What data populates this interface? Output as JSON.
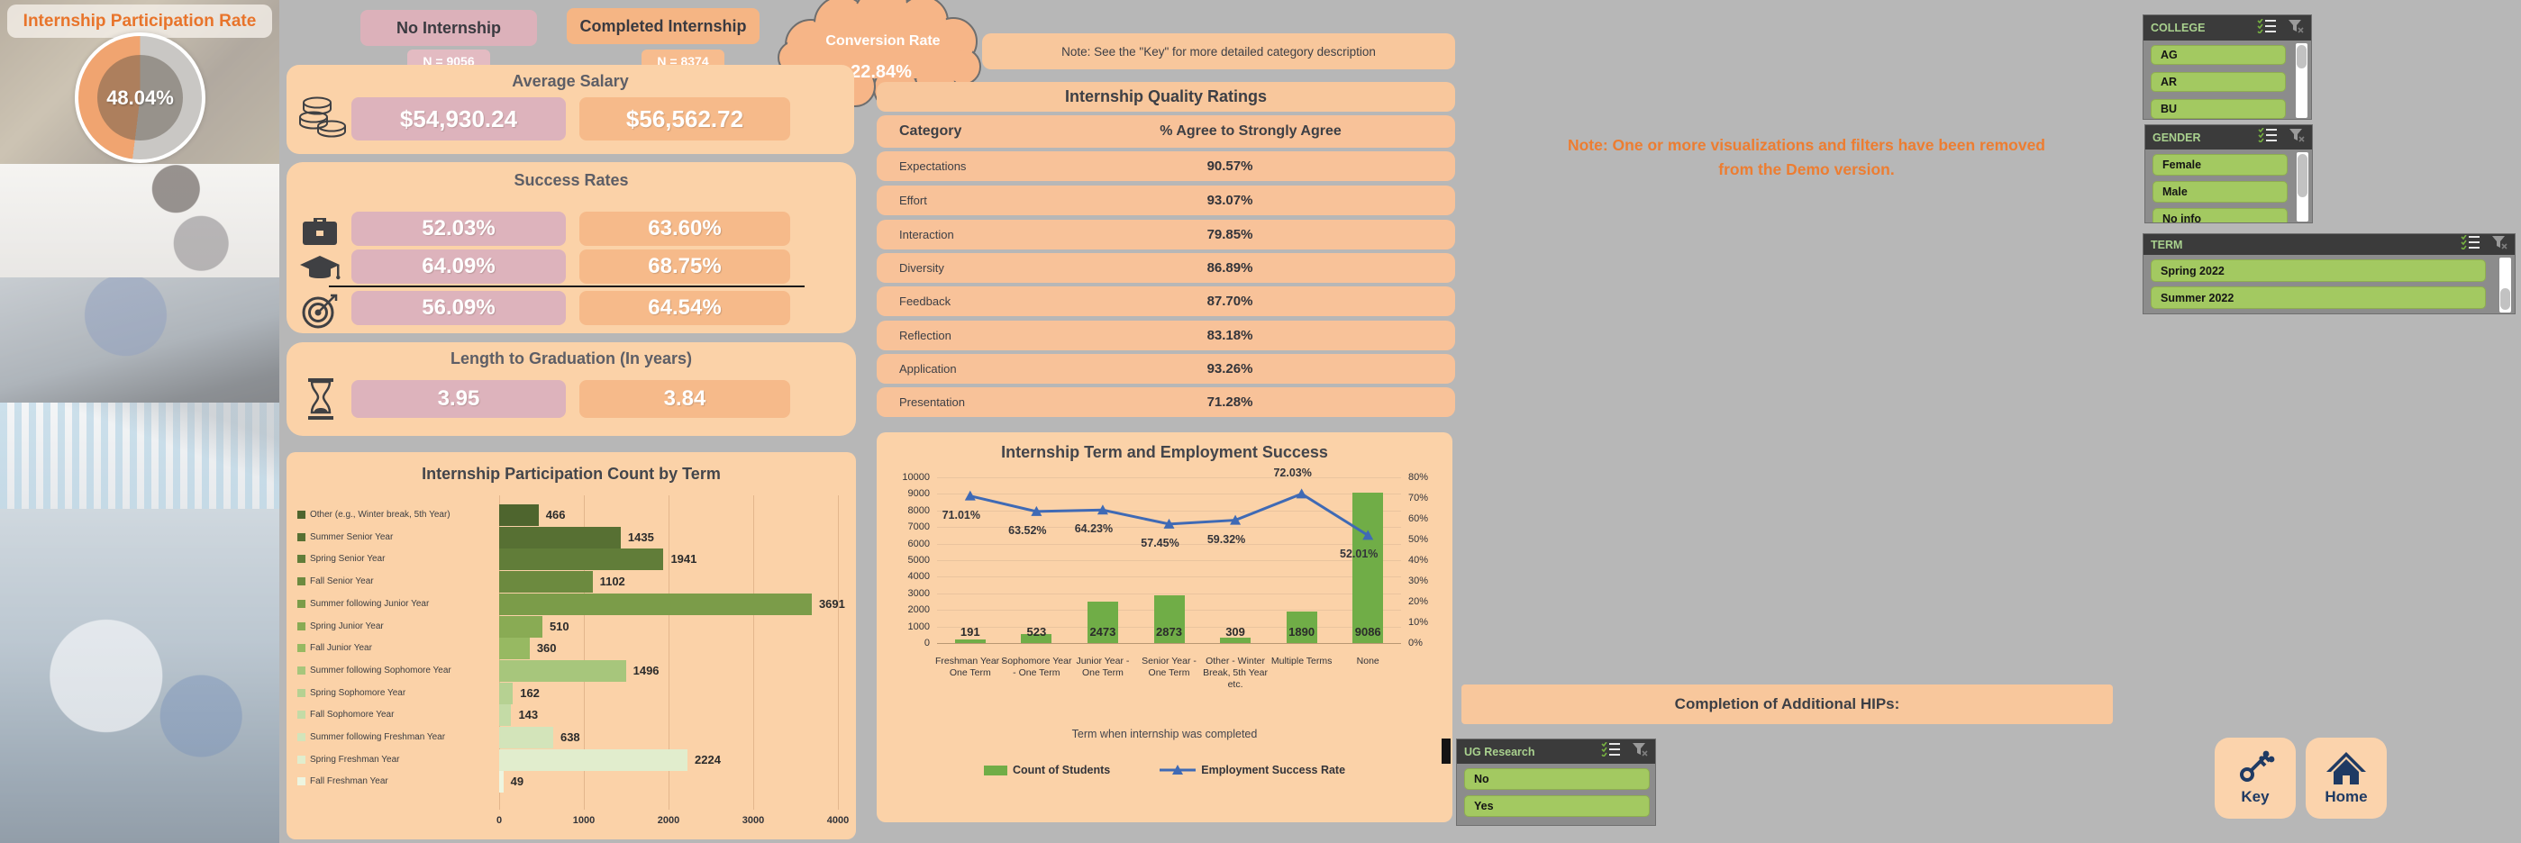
{
  "sidebar": {
    "title": "Internship Participation Rate",
    "donut_value": "48.04%",
    "donut_pct": 48.04,
    "donut_color": "#f0a470"
  },
  "header": {
    "no_label": "No Internship",
    "no_n": "N = 9056",
    "yes_label": "Completed Internship",
    "yes_n": "N = 8374",
    "conversion_label": "Conversion Rate",
    "conversion_value": "22.84%"
  },
  "salary": {
    "title": "Average Salary",
    "no": "$54,930.24",
    "yes": "$56,562.72"
  },
  "success": {
    "title": "Success Rates",
    "rows": [
      {
        "icon": "briefcase-icon",
        "no": "52.03%",
        "yes": "63.60%"
      },
      {
        "icon": "graduation-cap-icon",
        "no": "64.09%",
        "yes": "68.75%"
      },
      {
        "icon": "target-icon",
        "no": "56.09%",
        "yes": "64.54%"
      }
    ]
  },
  "graduation": {
    "title": "Length to Graduation (In years)",
    "no": "3.95",
    "yes": "3.84"
  },
  "quality": {
    "note": "Note: See the \"Key\" for more detailed category description",
    "title": "Internship Quality Ratings",
    "header": {
      "category": "Category",
      "value": "% Agree to Strongly Agree"
    },
    "rows": [
      {
        "category": "Expectations",
        "value": "90.57%"
      },
      {
        "category": "Effort",
        "value": "93.07%"
      },
      {
        "category": "Interaction",
        "value": "79.85%"
      },
      {
        "category": "Diversity",
        "value": "86.89%"
      },
      {
        "category": "Feedback",
        "value": "87.70%"
      },
      {
        "category": "Reflection",
        "value": "83.18%"
      },
      {
        "category": "Application",
        "value": "93.26%"
      },
      {
        "category": "Presentation",
        "value": "71.28%"
      }
    ]
  },
  "demo_note": "Note: One or more visualizations and filters have been removed from the Demo version.",
  "hips_title": "Completion of Additional HIPs:",
  "slicers": [
    {
      "id": "college",
      "title": "COLLEGE",
      "items": [
        "AG",
        "AR",
        "BU"
      ]
    },
    {
      "id": "gender",
      "title": "GENDER",
      "items": [
        "Female",
        "Male",
        "No info"
      ]
    },
    {
      "id": "term",
      "title": "TERM",
      "items": [
        "Spring 2022",
        "Summer 2022"
      ]
    },
    {
      "id": "ug-research",
      "title": "UG Research",
      "items": [
        "No",
        "Yes"
      ]
    }
  ],
  "buttons": {
    "key": "Key",
    "home": "Home"
  },
  "chart_data": [
    {
      "type": "bar",
      "orientation": "horizontal",
      "title": "Internship Participation Count by Term",
      "categories": [
        "Other (e.g., Winter break, 5th Year)",
        "Summer Senior Year",
        "Spring Senior Year",
        "Fall Senior Year",
        "Summer following Junior Year",
        "Spring Junior Year",
        "Fall Junior Year",
        "Summer following Sophomore Year",
        "Spring Sophomore Year",
        "Fall Sophomore Year",
        "Summer following Freshman Year",
        "Spring Freshman Year",
        "Fall Freshman Year"
      ],
      "values": [
        466,
        1435,
        1941,
        1102,
        3691,
        510,
        360,
        1496,
        162,
        143,
        638,
        2224,
        49
      ],
      "bar_colors": [
        "#4e652e",
        "#577033",
        "#617d39",
        "#6c8a3f",
        "#7b9c49",
        "#89ab54",
        "#97b962",
        "#a7c67c",
        "#b6d192",
        "#c4dba6",
        "#d3e4ba",
        "#e1edcd",
        "#edf5e0"
      ],
      "xlim": [
        0,
        4000
      ],
      "xticks": [
        0,
        1000,
        2000,
        3000,
        4000
      ],
      "grid": true,
      "value_labels": true,
      "legend_position": "left-of-bars"
    },
    {
      "type": "combo",
      "title": "Internship Term and Employment Success",
      "categories": [
        "Freshman Year - One Term",
        "Sophomore Year - One Term",
        "Junior Year - One Term",
        "Senior Year - One Term",
        "Other - Winter Break, 5th Year etc.",
        "Multiple Terms",
        "None"
      ],
      "series": [
        {
          "name": "Count of Students",
          "type": "bar",
          "color": "#70ad47",
          "axis": "left",
          "values": [
            191,
            523,
            2473,
            2873,
            309,
            1890,
            9086
          ]
        },
        {
          "name": "Employment Success Rate",
          "type": "line",
          "color": "#3f6ab5",
          "axis": "right",
          "values": [
            71.01,
            63.52,
            64.23,
            57.45,
            59.32,
            72.03,
            52.01
          ],
          "labels": [
            "71.01%",
            "63.52%",
            "64.23%",
            "57.45%",
            "59.32%",
            "72.03%",
            "52.01%"
          ]
        }
      ],
      "left_axis": {
        "min": 0,
        "max": 10000,
        "step": 1000
      },
      "right_axis": {
        "min": 0,
        "max": 80,
        "step": 10,
        "format": "percent"
      },
      "xlabel": "Term when internship was completed",
      "legend_position": "bottom",
      "grid": true
    }
  ]
}
